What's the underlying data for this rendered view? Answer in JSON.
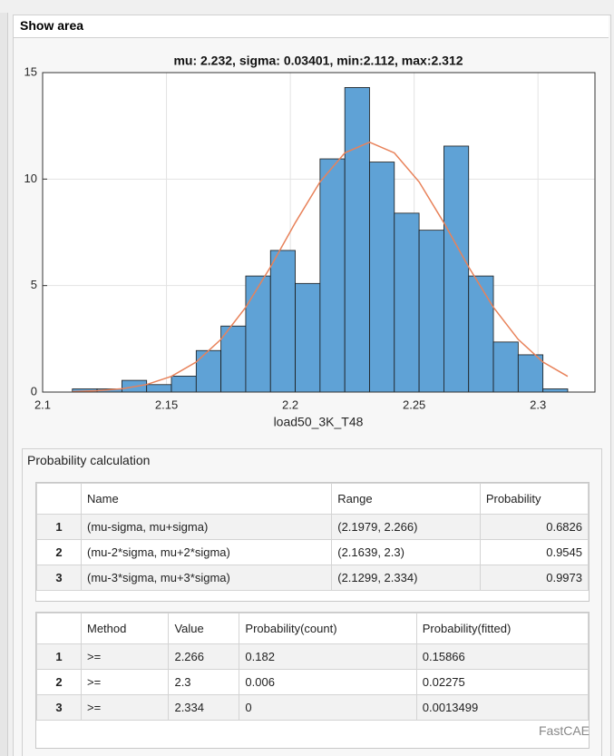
{
  "panel_title": "Show area",
  "chart_data": {
    "type": "histogram",
    "title": "mu: 2.232, sigma: 0.03401, min:2.112, max:2.312",
    "xlabel": "load50_3K_T48",
    "bins": [
      2.112,
      2.122,
      2.132,
      2.142,
      2.152,
      2.162,
      2.172,
      2.182,
      2.192,
      2.202,
      2.212,
      2.222,
      2.232,
      2.242,
      2.252,
      2.262,
      2.272,
      2.282,
      2.292,
      2.302,
      2.312
    ],
    "values": [
      0.15,
      0.15,
      0.55,
      0.35,
      0.75,
      1.95,
      3.1,
      5.45,
      6.65,
      5.1,
      10.95,
      14.3,
      10.8,
      8.4,
      7.6,
      11.55,
      5.45,
      2.35,
      1.75,
      0.15
    ],
    "color": "#5fa2d6",
    "fit": {
      "color": "#e8825a",
      "x": [
        2.112,
        2.122,
        2.132,
        2.142,
        2.152,
        2.162,
        2.172,
        2.182,
        2.192,
        2.202,
        2.212,
        2.222,
        2.232,
        2.242,
        2.252,
        2.262,
        2.272,
        2.282,
        2.292,
        2.302,
        2.312
      ],
      "values": [
        0.023,
        0.063,
        0.156,
        0.354,
        0.738,
        1.411,
        2.475,
        3.98,
        5.874,
        7.95,
        9.87,
        11.23,
        11.73,
        11.23,
        9.87,
        7.95,
        5.874,
        3.98,
        2.475,
        1.411,
        0.738
      ]
    },
    "xlim": [
      2.1,
      2.323
    ],
    "ylim": [
      0,
      15
    ],
    "xticks": [
      2.1,
      2.15,
      2.2,
      2.25,
      2.3
    ],
    "yticks": [
      0,
      5,
      10,
      15
    ],
    "grid": true
  },
  "probability_panel": {
    "title": "Probability calculation",
    "table1": {
      "columns": [
        "Name",
        "Range",
        "Probability"
      ],
      "rows": [
        [
          "1",
          "(mu-sigma, mu+sigma)",
          "(2.1979, 2.266)",
          "0.6826"
        ],
        [
          "2",
          "(mu-2*sigma, mu+2*sigma)",
          "(2.1639, 2.3)",
          "0.9545"
        ],
        [
          "3",
          "(mu-3*sigma, mu+3*sigma)",
          "(2.1299, 2.334)",
          "0.9973"
        ]
      ]
    },
    "table2": {
      "columns": [
        "Method",
        "Value",
        "Probability(count)",
        "Probability(fitted)"
      ],
      "rows": [
        [
          "1",
          ">=",
          "2.266",
          "0.182",
          "0.15866"
        ],
        [
          "2",
          ">=",
          "2.3",
          "0.006",
          "0.02275"
        ],
        [
          "3",
          ">=",
          "2.334",
          "0",
          "0.0013499"
        ]
      ]
    }
  },
  "watermark": "FastCAE"
}
